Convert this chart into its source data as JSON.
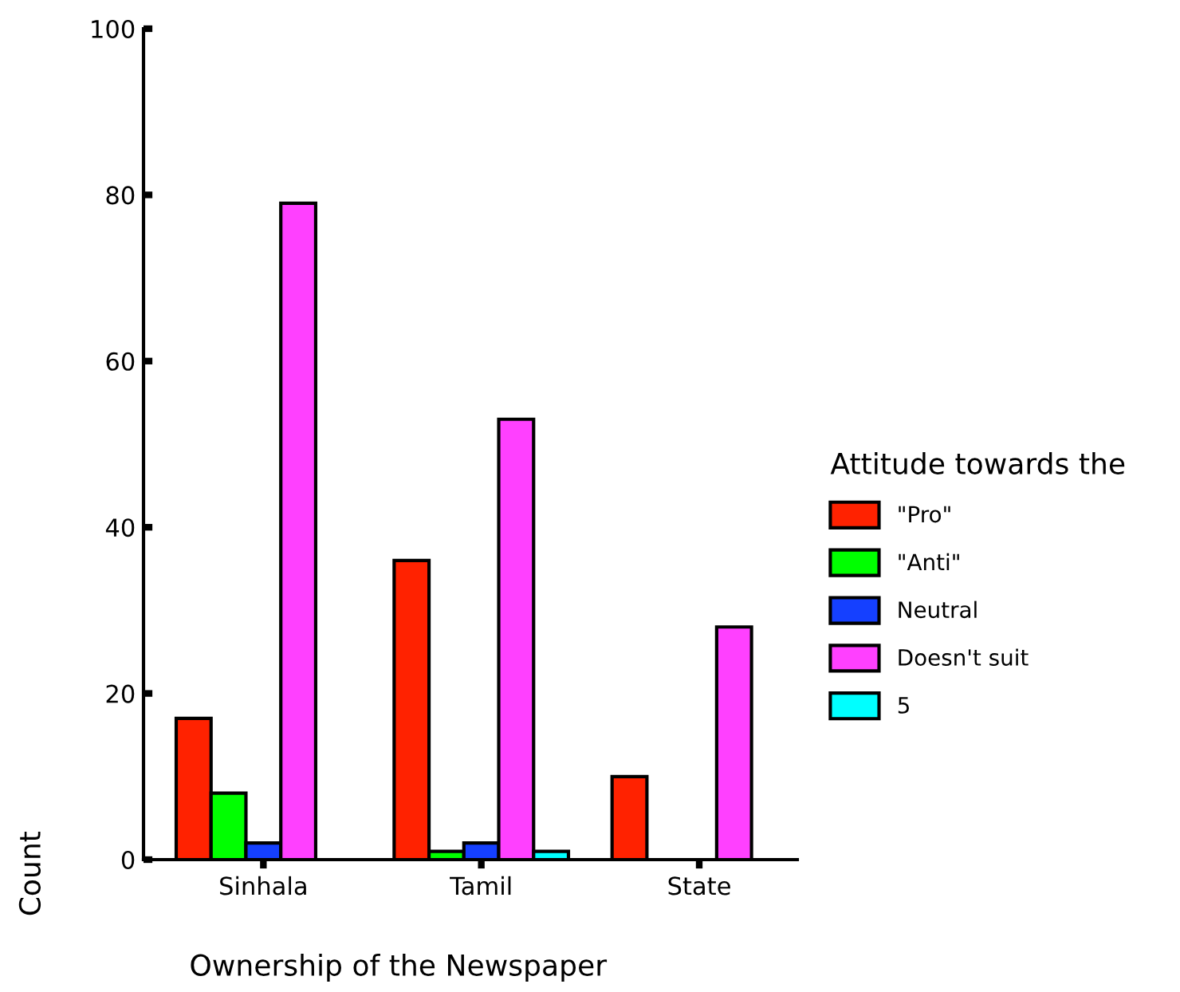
{
  "chart_data": {
    "type": "bar",
    "xlabel": "Ownership of the Newspaper",
    "ylabel": "Count",
    "legend_title": "Attitude towards the",
    "categories": [
      "Sinhala",
      "Tamil",
      "State"
    ],
    "series": [
      {
        "name": "\"Pro\"",
        "color": "#ff2200",
        "values": [
          17,
          36,
          10
        ]
      },
      {
        "name": "\"Anti\"",
        "color": "#00ff00",
        "values": [
          8,
          1,
          0
        ]
      },
      {
        "name": "Neutral",
        "color": "#1540ff",
        "values": [
          2,
          2,
          0
        ]
      },
      {
        "name": "Doesn't suit",
        "color": "#ff40ff",
        "values": [
          79,
          53,
          28
        ]
      },
      {
        "name": "5",
        "color": "#00ffff",
        "values": [
          0,
          1,
          0
        ]
      }
    ],
    "ylim": [
      0,
      100
    ],
    "yticks": [
      0,
      20,
      40,
      60,
      80,
      100
    ],
    "grid": false,
    "legend": "right"
  }
}
